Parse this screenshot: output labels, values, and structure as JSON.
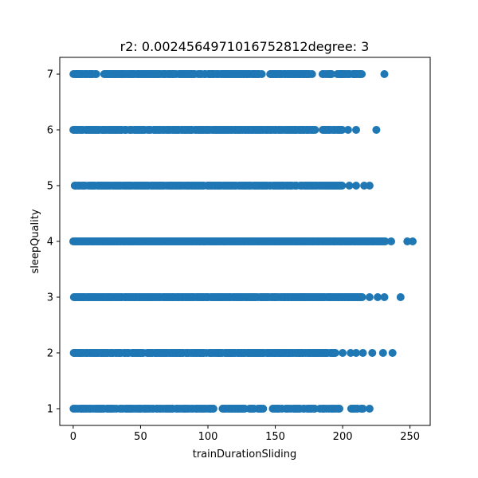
{
  "chart_data": {
    "type": "scatter",
    "title": "r2: 0.0024564971016752812degree: 3",
    "xlabel": "trainDurationSliding",
    "ylabel": "sleepQuality",
    "xlim": [
      -10,
      265
    ],
    "ylim": [
      0.7,
      7.3
    ],
    "x_ticks": [
      0,
      50,
      100,
      150,
      200,
      250
    ],
    "y_ticks": [
      1,
      2,
      3,
      4,
      5,
      6,
      7
    ],
    "grid": false,
    "marker_color": "#1f77b4",
    "rows": [
      {
        "y": 7,
        "density": 0.85,
        "segments": [
          [
            0,
            17
          ],
          [
            22,
            140
          ],
          [
            145,
            178
          ],
          [
            185,
            192
          ],
          [
            196,
            214
          ]
        ],
        "outliers": [
          231
        ]
      },
      {
        "y": 6,
        "density": 0.85,
        "segments": [
          [
            0,
            180
          ],
          [
            185,
            200
          ]
        ],
        "outliers": [
          204,
          210,
          225
        ]
      },
      {
        "y": 5,
        "density": 0.9,
        "segments": [
          [
            0,
            200
          ]
        ],
        "outliers": [
          205,
          210,
          216,
          220
        ]
      },
      {
        "y": 4,
        "density": 1.0,
        "segments": [
          [
            0,
            232
          ]
        ],
        "outliers": [
          236,
          248,
          252
        ]
      },
      {
        "y": 3,
        "density": 0.95,
        "segments": [
          [
            0,
            215
          ]
        ],
        "outliers": [
          220,
          226,
          231,
          243
        ]
      },
      {
        "y": 2,
        "density": 0.9,
        "segments": [
          [
            0,
            195
          ]
        ],
        "outliers": [
          200,
          206,
          210,
          215,
          222,
          230,
          237
        ]
      },
      {
        "y": 1,
        "density": 0.7,
        "segments": [
          [
            0,
            104
          ],
          [
            110,
            142
          ],
          [
            148,
            180
          ],
          [
            183,
            199
          ],
          [
            206,
            215
          ]
        ],
        "outliers": [
          220
        ]
      }
    ]
  }
}
